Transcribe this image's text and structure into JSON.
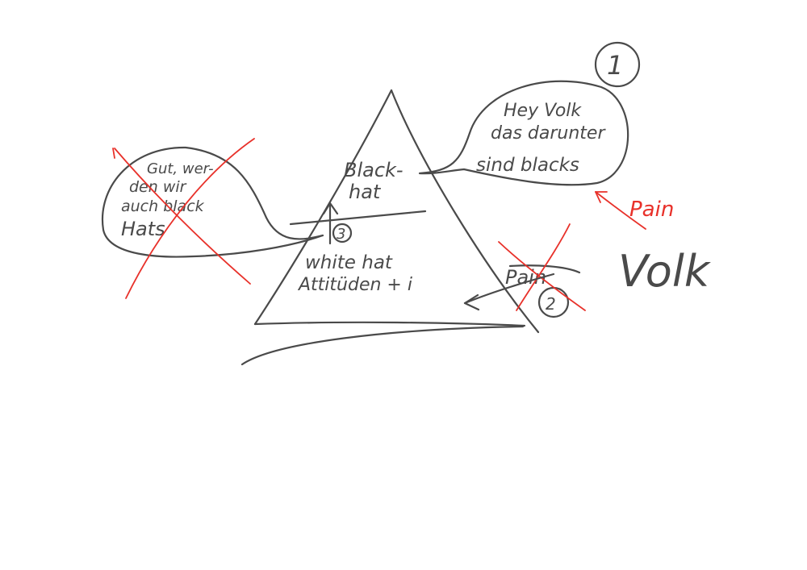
{
  "colors": {
    "ink": "#4a4a4a",
    "accent": "#e8312a",
    "background": "#ffffff"
  },
  "pyramid": {
    "top_label_line1": "Black-",
    "top_label_line2": "hat",
    "bottom_label_line1": "white hat",
    "bottom_label_line2": "Attitüden + i"
  },
  "bubble_right": {
    "line1": "Hey Volk",
    "line2": "das darunter",
    "line3": "sind blacks",
    "marker": "1"
  },
  "bubble_left": {
    "line1": "Gut, wer-",
    "line2": "den wir",
    "line3": "auch black",
    "line4": "Hats"
  },
  "markers": {
    "center": "3",
    "pain_crossed": "2"
  },
  "labels": {
    "pain_crossed": "Pain",
    "pain_red": "Pain",
    "volk": "Volk"
  }
}
